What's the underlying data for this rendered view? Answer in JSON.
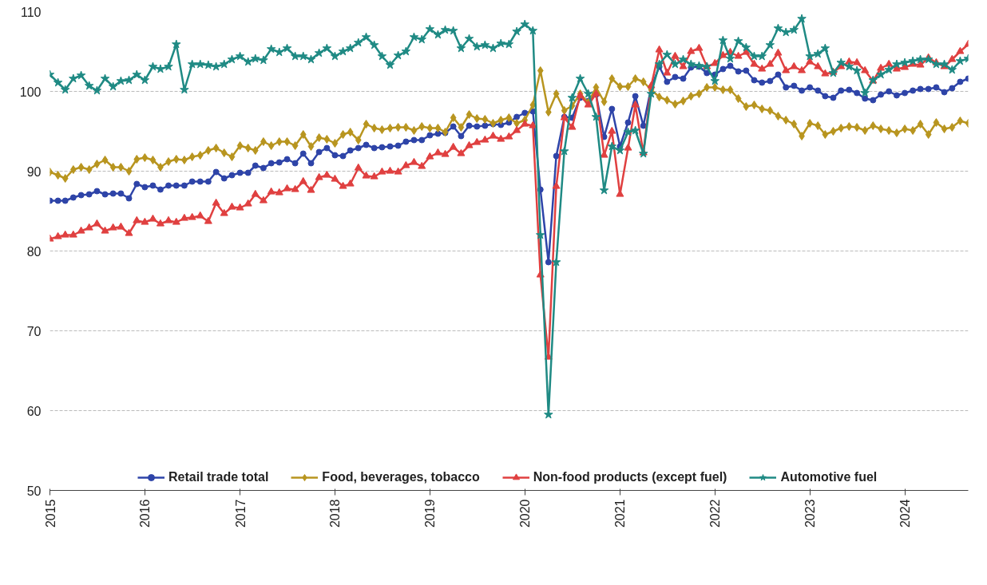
{
  "chart_data": {
    "type": "line",
    "x": [
      "2015-01",
      "2015-02",
      "2015-03",
      "2015-04",
      "2015-05",
      "2015-06",
      "2015-07",
      "2015-08",
      "2015-09",
      "2015-10",
      "2015-11",
      "2015-12",
      "2016-01",
      "2016-02",
      "2016-03",
      "2016-04",
      "2016-05",
      "2016-06",
      "2016-07",
      "2016-08",
      "2016-09",
      "2016-10",
      "2016-11",
      "2016-12",
      "2017-01",
      "2017-02",
      "2017-03",
      "2017-04",
      "2017-05",
      "2017-06",
      "2017-07",
      "2017-08",
      "2017-09",
      "2017-10",
      "2017-11",
      "2017-12",
      "2018-01",
      "2018-02",
      "2018-03",
      "2018-04",
      "2018-05",
      "2018-06",
      "2018-07",
      "2018-08",
      "2018-09",
      "2018-10",
      "2018-11",
      "2018-12",
      "2019-01",
      "2019-02",
      "2019-03",
      "2019-04",
      "2019-05",
      "2019-06",
      "2019-07",
      "2019-08",
      "2019-09",
      "2019-10",
      "2019-11",
      "2019-12",
      "2020-01",
      "2020-02",
      "2020-03",
      "2020-04",
      "2020-05",
      "2020-06",
      "2020-07",
      "2020-08",
      "2020-09",
      "2020-10",
      "2020-11",
      "2020-12",
      "2021-01",
      "2021-02",
      "2021-03",
      "2021-04",
      "2021-05",
      "2021-06",
      "2021-07",
      "2021-08",
      "2021-09",
      "2021-10",
      "2021-11",
      "2021-12",
      "2022-01",
      "2022-02",
      "2022-03",
      "2022-04",
      "2022-05",
      "2022-06",
      "2022-07",
      "2022-08",
      "2022-09",
      "2022-10",
      "2022-11",
      "2022-12",
      "2023-01",
      "2023-02",
      "2023-03",
      "2023-04",
      "2023-05",
      "2023-06",
      "2023-07",
      "2023-08",
      "2023-09",
      "2023-10",
      "2023-11",
      "2023-12",
      "2024-01",
      "2024-02",
      "2024-03",
      "2024-04",
      "2024-05",
      "2024-06",
      "2024-07",
      "2024-08",
      "2024-09"
    ],
    "series": [
      {
        "name": "Retail trade total",
        "color": "#2e44a8",
        "marker": "circle",
        "values": [
          86.3,
          86.3,
          86.3,
          86.7,
          87.0,
          87.1,
          87.5,
          87.1,
          87.2,
          87.2,
          86.6,
          88.4,
          88.0,
          88.2,
          87.7,
          88.2,
          88.2,
          88.2,
          88.7,
          88.7,
          88.7,
          89.9,
          89.1,
          89.5,
          89.8,
          89.8,
          90.7,
          90.4,
          91.0,
          91.1,
          91.5,
          91.0,
          92.2,
          91.0,
          92.4,
          92.9,
          92.0,
          91.9,
          92.6,
          92.9,
          93.3,
          92.9,
          93.0,
          93.1,
          93.2,
          93.7,
          93.9,
          93.9,
          94.5,
          94.7,
          94.8,
          95.6,
          94.4,
          95.7,
          95.6,
          95.7,
          95.9,
          95.8,
          96.1,
          96.8,
          97.3,
          97.5,
          87.7,
          78.6,
          91.9,
          96.8,
          96.7,
          99.2,
          98.8,
          99.6,
          94.3,
          97.8,
          93.1,
          96.1,
          99.4,
          95.7,
          100.5,
          103.1,
          101.2,
          101.8,
          101.6,
          103.0,
          103.1,
          102.3,
          102.1,
          102.8,
          103.2,
          102.5,
          102.6,
          101.4,
          101.1,
          101.3,
          102.1,
          100.5,
          100.7,
          100.1,
          100.5,
          100.1,
          99.4,
          99.2,
          100.1,
          100.2,
          99.8,
          99.1,
          98.9,
          99.6,
          100.0,
          99.5,
          99.8,
          100.1,
          100.3,
          100.3,
          100.5,
          99.9,
          100.4,
          101.2,
          101.6
        ]
      },
      {
        "name": "Food, beverages, tobacco",
        "color": "#b8951f",
        "marker": "diamond",
        "values": [
          89.9,
          89.5,
          89.1,
          90.2,
          90.5,
          90.2,
          90.9,
          91.4,
          90.5,
          90.5,
          90.0,
          91.5,
          91.7,
          91.4,
          90.5,
          91.2,
          91.5,
          91.4,
          91.8,
          92.0,
          92.6,
          92.9,
          92.3,
          91.8,
          93.2,
          92.9,
          92.6,
          93.7,
          93.2,
          93.7,
          93.7,
          93.2,
          94.6,
          93.1,
          94.2,
          94.0,
          93.5,
          94.6,
          94.9,
          93.9,
          95.9,
          95.4,
          95.2,
          95.4,
          95.5,
          95.5,
          95.1,
          95.6,
          95.4,
          95.4,
          94.9,
          96.7,
          95.5,
          97.1,
          96.6,
          96.5,
          96.0,
          96.4,
          96.7,
          96.0,
          96.4,
          98.3,
          102.6,
          97.4,
          99.7,
          97.6,
          98.2,
          99.7,
          98.6,
          100.5,
          98.7,
          101.6,
          100.6,
          100.6,
          101.6,
          101.2,
          100.2,
          99.3,
          98.9,
          98.4,
          98.8,
          99.4,
          99.7,
          100.5,
          100.5,
          100.2,
          100.2,
          99.1,
          98.1,
          98.3,
          97.8,
          97.6,
          96.9,
          96.4,
          95.9,
          94.4,
          96.0,
          95.7,
          94.6,
          95.0,
          95.4,
          95.6,
          95.5,
          95.1,
          95.7,
          95.3,
          95.1,
          94.8,
          95.3,
          95.1,
          95.9,
          94.6,
          96.1,
          95.3,
          95.5,
          96.3,
          96.0
        ]
      },
      {
        "name": "Non-food products (except fuel)",
        "color": "#e04040",
        "marker": "triangle",
        "values": [
          81.5,
          81.8,
          82.0,
          82.0,
          82.5,
          82.9,
          83.4,
          82.5,
          82.9,
          83.0,
          82.2,
          83.8,
          83.6,
          84.0,
          83.4,
          83.8,
          83.6,
          84.1,
          84.2,
          84.4,
          83.7,
          86.0,
          84.7,
          85.5,
          85.4,
          85.9,
          87.1,
          86.3,
          87.4,
          87.3,
          87.8,
          87.7,
          88.7,
          87.6,
          89.2,
          89.5,
          89.0,
          88.1,
          88.4,
          90.4,
          89.4,
          89.3,
          89.9,
          90.0,
          89.9,
          90.7,
          91.1,
          90.6,
          91.8,
          92.3,
          92.1,
          93.0,
          92.2,
          93.2,
          93.6,
          93.9,
          94.4,
          94.0,
          94.3,
          95.1,
          95.9,
          95.7,
          77.0,
          66.7,
          88.1,
          96.7,
          95.5,
          99.5,
          98.3,
          99.7,
          92.0,
          95.0,
          87.1,
          92.9,
          98.3,
          92.3,
          100.7,
          105.2,
          102.3,
          104.4,
          103.1,
          105.0,
          105.4,
          103.1,
          103.5,
          104.5,
          104.9,
          104.4,
          104.9,
          103.4,
          102.8,
          103.4,
          104.8,
          102.6,
          103.1,
          102.6,
          103.7,
          103.1,
          102.2,
          102.4,
          103.1,
          103.7,
          103.6,
          102.6,
          101.3,
          102.9,
          103.4,
          102.8,
          103.0,
          103.4,
          103.3,
          104.2,
          103.6,
          103.1,
          104.0,
          105.0,
          105.9
        ]
      },
      {
        "name": "Automotive fuel",
        "color": "#1f8a84",
        "marker": "star",
        "values": [
          102.1,
          101.1,
          100.2,
          101.6,
          102.0,
          100.7,
          100.1,
          101.6,
          100.6,
          101.3,
          101.4,
          102.1,
          101.4,
          103.1,
          102.8,
          103.1,
          105.9,
          100.2,
          103.4,
          103.4,
          103.3,
          103.1,
          103.4,
          104.0,
          104.4,
          103.7,
          104.1,
          103.9,
          105.3,
          104.9,
          105.4,
          104.4,
          104.4,
          104.0,
          104.8,
          105.4,
          104.4,
          105.0,
          105.4,
          106.1,
          106.8,
          105.8,
          104.4,
          103.3,
          104.5,
          105.0,
          106.8,
          106.5,
          107.8,
          107.1,
          107.7,
          107.6,
          105.4,
          106.6,
          105.6,
          105.8,
          105.4,
          106.0,
          105.9,
          107.5,
          108.4,
          107.6,
          82.0,
          59.5,
          78.6,
          92.5,
          99.2,
          101.6,
          99.7,
          96.8,
          87.6,
          93.1,
          92.6,
          94.9,
          95.1,
          92.2,
          99.7,
          103.4,
          104.6,
          103.4,
          104.0,
          103.4,
          103.2,
          103.1,
          101.3,
          106.4,
          104.1,
          106.3,
          105.5,
          104.4,
          104.4,
          105.8,
          107.9,
          107.4,
          107.7,
          109.1,
          104.4,
          104.7,
          105.4,
          102.3,
          103.6,
          103.1,
          102.6,
          99.8,
          101.4,
          102.1,
          102.7,
          103.4,
          103.6,
          103.8,
          104.0,
          104.0,
          103.4,
          103.4,
          102.7,
          103.8,
          104.1
        ]
      }
    ],
    "xlim": [
      "2015-01",
      "2024-09"
    ],
    "xticks": [
      {
        "value": "2015-01",
        "label": "2015"
      },
      {
        "value": "2016-01",
        "label": "2016"
      },
      {
        "value": "2017-01",
        "label": "2017"
      },
      {
        "value": "2018-01",
        "label": "2018"
      },
      {
        "value": "2019-01",
        "label": "2019"
      },
      {
        "value": "2020-01",
        "label": "2020"
      },
      {
        "value": "2021-01",
        "label": "2021"
      },
      {
        "value": "2022-01",
        "label": "2022"
      },
      {
        "value": "2023-01",
        "label": "2023"
      },
      {
        "value": "2024-01",
        "label": "2024"
      }
    ],
    "ylim": [
      50,
      110
    ],
    "yticks": [
      50,
      60,
      70,
      80,
      90,
      100,
      110
    ],
    "grid": "y",
    "legend": "bottom",
    "line_style": "solid"
  }
}
